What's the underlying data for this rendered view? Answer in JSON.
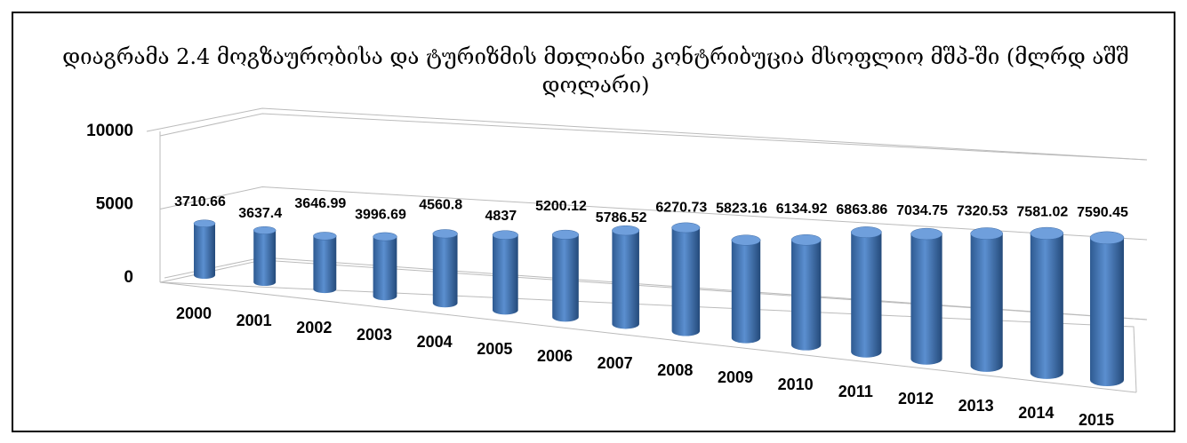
{
  "chart_data": {
    "type": "bar3d",
    "title": "დიაგრამა 2.4 მოგზაურობისა და ტურიზმის მთლიანი კონტრიბუცია მსოფლიო  მშპ-ში (მლრდ აშშ დოლარი)",
    "categories": [
      "2000",
      "2001",
      "2002",
      "2003",
      "2004",
      "2005",
      "2006",
      "2007",
      "2008",
      "2009",
      "2010",
      "2011",
      "2012",
      "2013",
      "2014",
      "2015"
    ],
    "values": [
      3710.66,
      3637.4,
      3646.99,
      3996.69,
      4560.8,
      4837,
      5200.12,
      5786.52,
      6270.73,
      5823.16,
      6134.92,
      6863.86,
      7034.75,
      7320.53,
      7581.02,
      7590.45
    ],
    "color": "#4a7ebb",
    "ylim": [
      0,
      10000
    ],
    "yticks": [
      0,
      5000,
      10000
    ],
    "grid": true
  }
}
